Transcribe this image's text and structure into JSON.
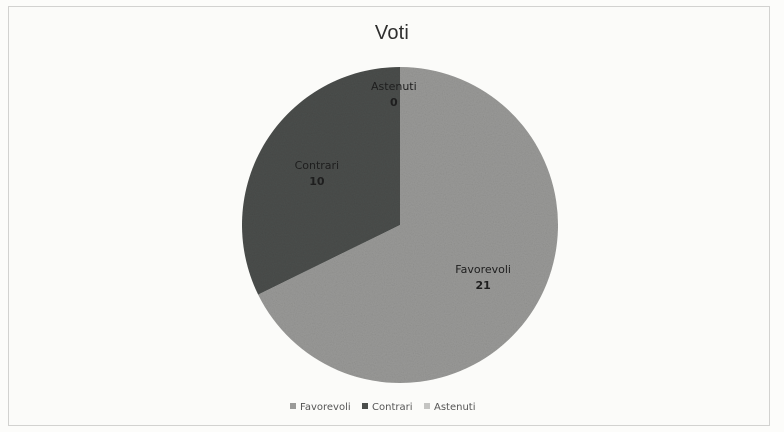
{
  "chart_data": {
    "type": "pie",
    "title": "Voti",
    "categories": [
      "Favorevoli",
      "Contrari",
      "Astenuti"
    ],
    "values": [
      21,
      10,
      0
    ],
    "colors": [
      "#9a9a98",
      "#4b4e4c",
      "#c4c4c2"
    ],
    "legend_position": "bottom",
    "data_labels": true
  }
}
